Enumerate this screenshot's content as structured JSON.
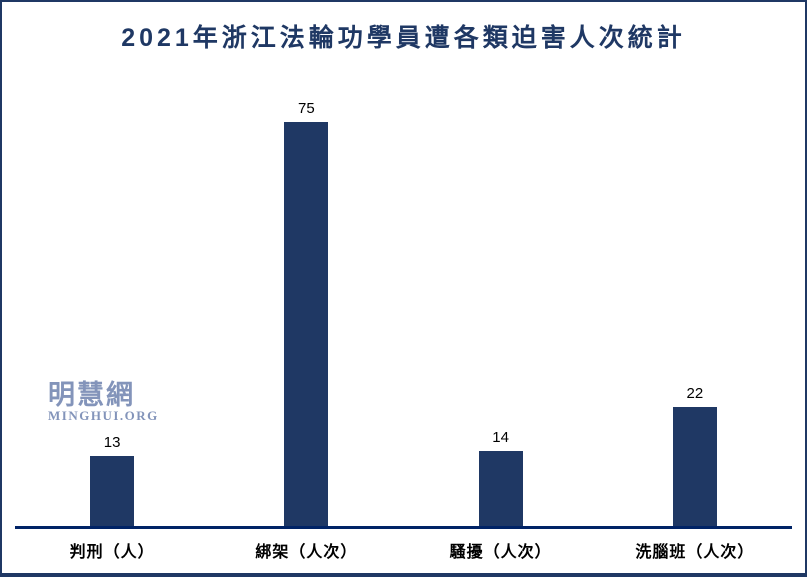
{
  "page": {
    "title": "2021年浙江法輪功學員遭各類迫害人次統計"
  },
  "watermark": {
    "line1": "明慧網",
    "line2": "MINGHUI.ORG"
  },
  "chart_data": {
    "type": "bar",
    "title": "2021年浙江法輪功學員遭各類迫害人次統計",
    "categories": [
      "判刑（人）",
      "綁架（人次）",
      "騷擾（人次）",
      "洗腦班（人次）"
    ],
    "values": [
      13,
      75,
      14,
      22
    ],
    "xlabel": "",
    "ylabel": "",
    "ylim": [
      0,
      75
    ],
    "grid": false,
    "legend": false,
    "colors": {
      "bar": "#1F3864",
      "axis_line": "#002366",
      "title": "#1F3864",
      "value_label": "#000000",
      "category_label": "#000000",
      "watermark": "#8394BA",
      "border": "#1F3864",
      "background": "#FFFFFF"
    }
  }
}
